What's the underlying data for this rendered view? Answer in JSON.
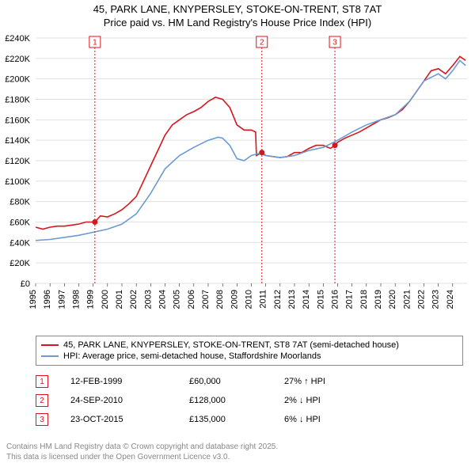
{
  "title_line1": "45, PARK LANE, KNYPERSLEY, STOKE-ON-TRENT, ST8 7AT",
  "title_line2": "Price paid vs. HM Land Registry's House Price Index (HPI)",
  "chart": {
    "type": "line",
    "background_color": "#ffffff",
    "grid_color": "#e0e0e0",
    "x_years": [
      1995,
      1996,
      1997,
      1998,
      1999,
      2000,
      2001,
      2002,
      2003,
      2004,
      2005,
      2006,
      2007,
      2008,
      2009,
      2010,
      2011,
      2012,
      2013,
      2014,
      2015,
      2016,
      2017,
      2018,
      2019,
      2020,
      2021,
      2022,
      2023,
      2024
    ],
    "ylim": [
      0,
      240000
    ],
    "ytick_step": 20000,
    "ytick_labels": [
      "£0",
      "£20K",
      "£40K",
      "£60K",
      "£80K",
      "£100K",
      "£120K",
      "£140K",
      "£160K",
      "£180K",
      "£200K",
      "£220K",
      "£240K"
    ],
    "series": [
      {
        "name": "property_price",
        "label": "45, PARK LANE, KNYPERSLEY, STOKE-ON-TRENT, ST8 7AT (semi-detached house)",
        "color": "#d4171e",
        "line_width": 1.6,
        "data": [
          [
            1995.0,
            55000
          ],
          [
            1995.5,
            53000
          ],
          [
            1996.0,
            55000
          ],
          [
            1996.5,
            56000
          ],
          [
            1997.0,
            56000
          ],
          [
            1997.5,
            57000
          ],
          [
            1998.0,
            58000
          ],
          [
            1998.5,
            60000
          ],
          [
            1999.12,
            60000
          ],
          [
            1999.5,
            66000
          ],
          [
            2000.0,
            65000
          ],
          [
            2000.5,
            68000
          ],
          [
            2001.0,
            72000
          ],
          [
            2001.5,
            78000
          ],
          [
            2002.0,
            85000
          ],
          [
            2002.5,
            100000
          ],
          [
            2003.0,
            115000
          ],
          [
            2003.5,
            130000
          ],
          [
            2004.0,
            145000
          ],
          [
            2004.5,
            155000
          ],
          [
            2005.0,
            160000
          ],
          [
            2005.5,
            165000
          ],
          [
            2006.0,
            168000
          ],
          [
            2006.5,
            172000
          ],
          [
            2007.0,
            178000
          ],
          [
            2007.5,
            182000
          ],
          [
            2008.0,
            180000
          ],
          [
            2008.5,
            172000
          ],
          [
            2009.0,
            155000
          ],
          [
            2009.5,
            150000
          ],
          [
            2010.0,
            150000
          ],
          [
            2010.3,
            148000
          ],
          [
            2010.35,
            125000
          ],
          [
            2010.73,
            128000
          ],
          [
            2011.0,
            125000
          ],
          [
            2011.5,
            124000
          ],
          [
            2012.0,
            123000
          ],
          [
            2012.5,
            124000
          ],
          [
            2013.0,
            128000
          ],
          [
            2013.5,
            128000
          ],
          [
            2014.0,
            132000
          ],
          [
            2014.5,
            135000
          ],
          [
            2015.0,
            135000
          ],
          [
            2015.5,
            132000
          ],
          [
            2015.81,
            135000
          ],
          [
            2016.0,
            138000
          ],
          [
            2016.5,
            142000
          ],
          [
            2017.0,
            145000
          ],
          [
            2017.5,
            148000
          ],
          [
            2018.0,
            152000
          ],
          [
            2018.5,
            156000
          ],
          [
            2019.0,
            160000
          ],
          [
            2019.5,
            162000
          ],
          [
            2020.0,
            165000
          ],
          [
            2020.5,
            170000
          ],
          [
            2021.0,
            178000
          ],
          [
            2021.5,
            188000
          ],
          [
            2022.0,
            198000
          ],
          [
            2022.5,
            208000
          ],
          [
            2023.0,
            210000
          ],
          [
            2023.5,
            205000
          ],
          [
            2024.0,
            213000
          ],
          [
            2024.5,
            222000
          ],
          [
            2024.9,
            218000
          ]
        ]
      },
      {
        "name": "hpi",
        "label": "HPI: Average price, semi-detached house, Staffordshire Moorlands",
        "color": "#6b9bd1",
        "line_width": 1.6,
        "data": [
          [
            1995.0,
            42000
          ],
          [
            1996.0,
            43000
          ],
          [
            1997.0,
            45000
          ],
          [
            1998.0,
            47000
          ],
          [
            1999.0,
            50000
          ],
          [
            2000.0,
            53000
          ],
          [
            2001.0,
            58000
          ],
          [
            2002.0,
            68000
          ],
          [
            2003.0,
            88000
          ],
          [
            2004.0,
            112000
          ],
          [
            2005.0,
            125000
          ],
          [
            2006.0,
            133000
          ],
          [
            2007.0,
            140000
          ],
          [
            2007.7,
            143000
          ],
          [
            2008.0,
            142000
          ],
          [
            2008.5,
            135000
          ],
          [
            2009.0,
            122000
          ],
          [
            2009.5,
            120000
          ],
          [
            2010.0,
            125000
          ],
          [
            2010.5,
            127000
          ],
          [
            2011.0,
            125000
          ],
          [
            2012.0,
            123000
          ],
          [
            2013.0,
            125000
          ],
          [
            2014.0,
            130000
          ],
          [
            2015.0,
            133000
          ],
          [
            2016.0,
            140000
          ],
          [
            2017.0,
            148000
          ],
          [
            2018.0,
            155000
          ],
          [
            2019.0,
            160000
          ],
          [
            2020.0,
            165000
          ],
          [
            2021.0,
            178000
          ],
          [
            2022.0,
            198000
          ],
          [
            2023.0,
            205000
          ],
          [
            2023.5,
            200000
          ],
          [
            2024.0,
            208000
          ],
          [
            2024.5,
            218000
          ],
          [
            2024.9,
            213000
          ]
        ]
      }
    ],
    "markers": [
      {
        "n": "1",
        "year": 1999.12,
        "price": 60000,
        "color": "#d4171e"
      },
      {
        "n": "2",
        "year": 2010.73,
        "price": 128000,
        "color": "#d4171e"
      },
      {
        "n": "3",
        "year": 2015.81,
        "price": 135000,
        "color": "#d4171e"
      }
    ]
  },
  "legend": {
    "items": [
      {
        "color": "#d4171e",
        "label": "45, PARK LANE, KNYPERSLEY, STOKE-ON-TRENT, ST8 7AT (semi-detached house)"
      },
      {
        "color": "#6b9bd1",
        "label": "HPI: Average price, semi-detached house, Staffordshire Moorlands"
      }
    ]
  },
  "marker_rows": [
    {
      "n": "1",
      "color": "#d4171e",
      "date": "12-FEB-1999",
      "price": "£60,000",
      "pct": "27% ↑ HPI"
    },
    {
      "n": "2",
      "color": "#d4171e",
      "date": "24-SEP-2010",
      "price": "£128,000",
      "pct": "2% ↓ HPI"
    },
    {
      "n": "3",
      "color": "#d4171e",
      "date": "23-OCT-2015",
      "price": "£135,000",
      "pct": "6% ↓ HPI"
    }
  ],
  "attribution_line1": "Contains HM Land Registry data © Crown copyright and database right 2025.",
  "attribution_line2": "This data is licensed under the Open Government Licence v3.0."
}
